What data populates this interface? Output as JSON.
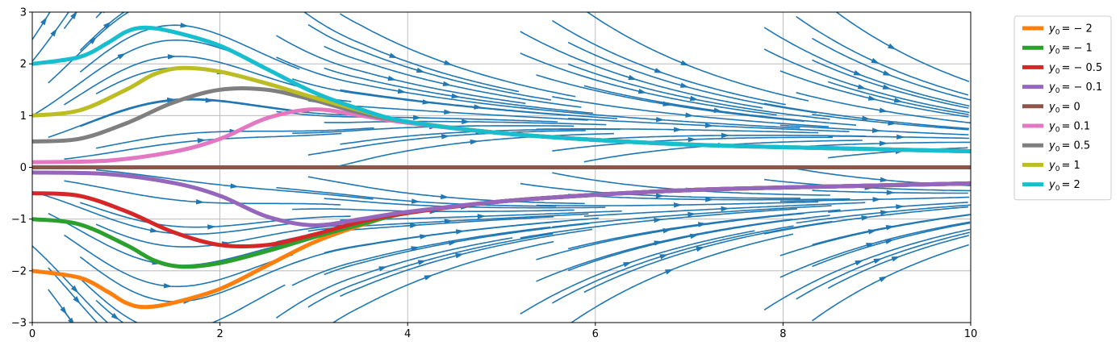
{
  "chart_data": {
    "type": "line",
    "title": "",
    "xlabel": "",
    "ylabel": "",
    "xlim": [
      0,
      10
    ],
    "ylim": [
      -3,
      3
    ],
    "x_ticks": [
      "0",
      "2",
      "4",
      "6",
      "8",
      "10"
    ],
    "y_ticks": [
      "3",
      "2",
      "1",
      "0",
      "−1",
      "−2",
      "−3"
    ],
    "grid": true,
    "legend_position": "outside-right-top",
    "background_field": {
      "type": "streamplot",
      "color": "#1f77b4"
    },
    "series": [
      {
        "y0": -2,
        "color": "#ff7f0e",
        "label_sub": "= − 2",
        "points": [
          [
            0,
            -2.0
          ],
          [
            0.5,
            -2.13
          ],
          [
            0.8,
            -2.4
          ],
          [
            1.0,
            -2.62
          ],
          [
            1.2,
            -2.7
          ],
          [
            1.5,
            -2.62
          ],
          [
            2.0,
            -2.35
          ],
          [
            2.5,
            -1.9
          ],
          [
            3.0,
            -1.45
          ],
          [
            3.5,
            -1.12
          ],
          [
            4.0,
            -0.88
          ],
          [
            5.0,
            -0.66
          ],
          [
            6.0,
            -0.53
          ],
          [
            7.0,
            -0.44
          ],
          [
            8.0,
            -0.39
          ],
          [
            9.0,
            -0.35
          ],
          [
            10.0,
            -0.31
          ]
        ]
      },
      {
        "y0": -1,
        "color": "#2ca02c",
        "label_sub": "= − 1",
        "points": [
          [
            0,
            -1.0
          ],
          [
            0.5,
            -1.1
          ],
          [
            1.0,
            -1.5
          ],
          [
            1.3,
            -1.8
          ],
          [
            1.6,
            -1.92
          ],
          [
            2.0,
            -1.85
          ],
          [
            2.5,
            -1.62
          ],
          [
            3.0,
            -1.35
          ],
          [
            3.5,
            -1.1
          ],
          [
            4.0,
            -0.88
          ],
          [
            5.0,
            -0.66
          ],
          [
            6.0,
            -0.53
          ],
          [
            7.0,
            -0.44
          ],
          [
            8.0,
            -0.39
          ],
          [
            9.0,
            -0.35
          ],
          [
            10.0,
            -0.31
          ]
        ]
      },
      {
        "y0": -0.5,
        "color": "#d62728",
        "label_sub": "= − 0.5",
        "points": [
          [
            0,
            -0.5
          ],
          [
            0.5,
            -0.55
          ],
          [
            1.0,
            -0.85
          ],
          [
            1.5,
            -1.25
          ],
          [
            2.0,
            -1.5
          ],
          [
            2.5,
            -1.5
          ],
          [
            3.0,
            -1.3
          ],
          [
            3.5,
            -1.05
          ],
          [
            4.0,
            -0.88
          ],
          [
            5.0,
            -0.66
          ],
          [
            6.0,
            -0.53
          ],
          [
            7.0,
            -0.44
          ],
          [
            8.0,
            -0.39
          ],
          [
            9.0,
            -0.35
          ],
          [
            10.0,
            -0.31
          ]
        ]
      },
      {
        "y0": -0.1,
        "color": "#9467bd",
        "label_sub": "= − 0.1",
        "points": [
          [
            0,
            -0.1
          ],
          [
            0.8,
            -0.13
          ],
          [
            1.5,
            -0.3
          ],
          [
            2.0,
            -0.55
          ],
          [
            2.5,
            -0.95
          ],
          [
            3.0,
            -1.12
          ],
          [
            3.5,
            -1.0
          ],
          [
            4.0,
            -0.86
          ],
          [
            5.0,
            -0.66
          ],
          [
            6.0,
            -0.53
          ],
          [
            7.0,
            -0.44
          ],
          [
            8.0,
            -0.39
          ],
          [
            9.0,
            -0.35
          ],
          [
            10.0,
            -0.31
          ]
        ]
      },
      {
        "y0": 0,
        "color": "#8c564b",
        "label_sub": "= 0",
        "points": [
          [
            0,
            0
          ],
          [
            10,
            0
          ]
        ]
      },
      {
        "y0": 0.1,
        "color": "#e377c2",
        "label_sub": "= 0.1",
        "points": [
          [
            0,
            0.1
          ],
          [
            0.8,
            0.13
          ],
          [
            1.5,
            0.3
          ],
          [
            2.0,
            0.55
          ],
          [
            2.5,
            0.95
          ],
          [
            3.0,
            1.12
          ],
          [
            3.5,
            1.0
          ],
          [
            4.0,
            0.86
          ],
          [
            5.0,
            0.66
          ],
          [
            6.0,
            0.53
          ],
          [
            7.0,
            0.44
          ],
          [
            8.0,
            0.39
          ],
          [
            9.0,
            0.35
          ],
          [
            10.0,
            0.31
          ]
        ]
      },
      {
        "y0": 0.5,
        "color": "#7f7f7f",
        "label_sub": "= 0.5",
        "points": [
          [
            0,
            0.5
          ],
          [
            0.5,
            0.55
          ],
          [
            1.0,
            0.85
          ],
          [
            1.5,
            1.25
          ],
          [
            2.0,
            1.5
          ],
          [
            2.5,
            1.5
          ],
          [
            3.0,
            1.3
          ],
          [
            3.5,
            1.05
          ],
          [
            4.0,
            0.88
          ],
          [
            5.0,
            0.66
          ],
          [
            6.0,
            0.53
          ],
          [
            7.0,
            0.44
          ],
          [
            8.0,
            0.39
          ],
          [
            9.0,
            0.35
          ],
          [
            10.0,
            0.31
          ]
        ]
      },
      {
        "y0": 1,
        "color": "#bcbd22",
        "label_sub": "= 1",
        "points": [
          [
            0,
            1.0
          ],
          [
            0.5,
            1.1
          ],
          [
            1.0,
            1.5
          ],
          [
            1.3,
            1.8
          ],
          [
            1.6,
            1.92
          ],
          [
            2.0,
            1.85
          ],
          [
            2.5,
            1.62
          ],
          [
            3.0,
            1.35
          ],
          [
            3.5,
            1.1
          ],
          [
            4.0,
            0.88
          ],
          [
            5.0,
            0.66
          ],
          [
            6.0,
            0.53
          ],
          [
            7.0,
            0.44
          ],
          [
            8.0,
            0.39
          ],
          [
            9.0,
            0.35
          ],
          [
            10.0,
            0.31
          ]
        ]
      },
      {
        "y0": 2,
        "color": "#17becf",
        "label_sub": "= 2",
        "points": [
          [
            0,
            2.0
          ],
          [
            0.5,
            2.13
          ],
          [
            0.8,
            2.4
          ],
          [
            1.0,
            2.62
          ],
          [
            1.2,
            2.7
          ],
          [
            1.5,
            2.62
          ],
          [
            2.0,
            2.35
          ],
          [
            2.5,
            1.9
          ],
          [
            3.0,
            1.45
          ],
          [
            3.5,
            1.12
          ],
          [
            4.0,
            0.88
          ],
          [
            5.0,
            0.66
          ],
          [
            6.0,
            0.53
          ],
          [
            7.0,
            0.44
          ],
          [
            8.0,
            0.39
          ],
          [
            9.0,
            0.35
          ],
          [
            10.0,
            0.31
          ]
        ]
      }
    ]
  }
}
